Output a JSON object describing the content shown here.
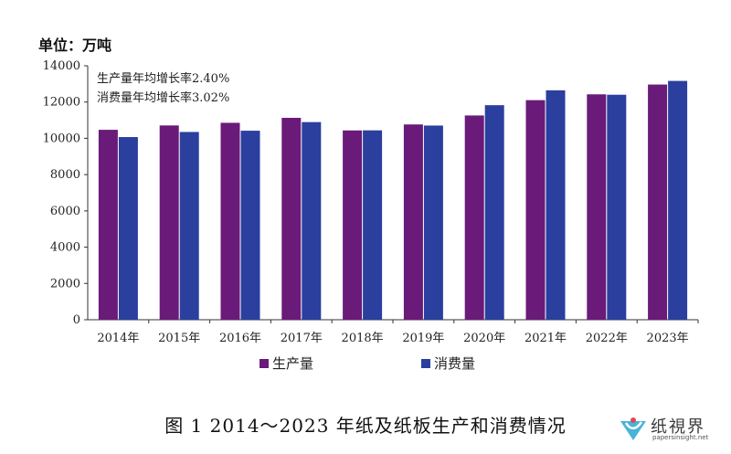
{
  "unit_label": "单位：万吨",
  "annotations": [
    "生产量年均增长率2.40%",
    "消费量年均增长率3.02%"
  ],
  "caption": "图 1  2014～2023 年纸及纸板生产和消费情况",
  "logo": {
    "text": "纸視界",
    "sub": "papersinsight.net"
  },
  "colors": {
    "production": "#6a1a78",
    "consumption": "#2a3f9e"
  },
  "chart_data": {
    "type": "bar",
    "categories": [
      "2014年",
      "2015年",
      "2016年",
      "2017年",
      "2018年",
      "2019年",
      "2020年",
      "2021年",
      "2022年",
      "2023年"
    ],
    "series": [
      {
        "name": "生产量",
        "values": [
          10470,
          10710,
          10855,
          11130,
          10435,
          10765,
          11260,
          12105,
          12425,
          12965
        ]
      },
      {
        "name": "消费量",
        "values": [
          10070,
          10350,
          10420,
          10895,
          10439,
          10704,
          11827,
          12648,
          12403,
          13165
        ]
      }
    ],
    "ylim": [
      0,
      14000
    ],
    "yticks": [
      0,
      2000,
      4000,
      6000,
      8000,
      10000,
      12000,
      14000
    ],
    "grid": false,
    "legend": "bottom"
  }
}
